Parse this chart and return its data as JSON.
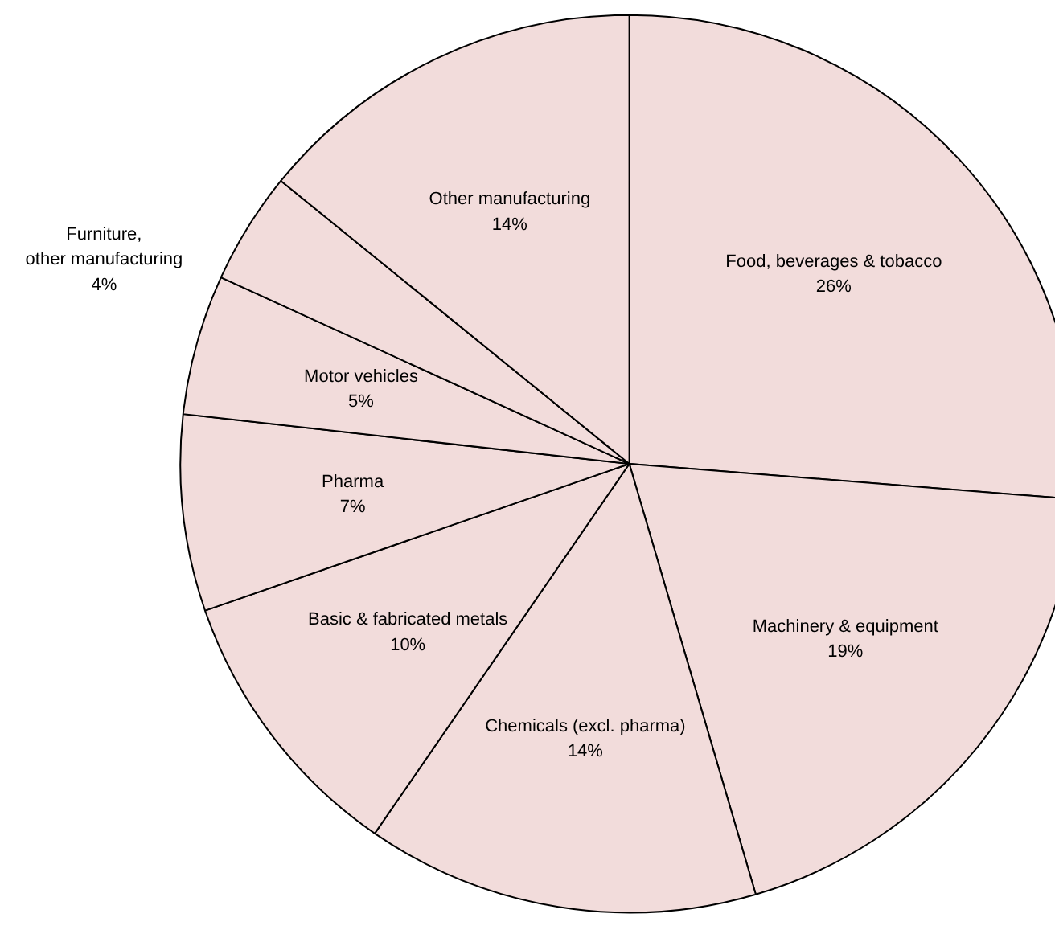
{
  "chart_data": {
    "type": "pie",
    "categories": [
      "Food, beverages & tobacco",
      "Machinery & equipment",
      "Chemicals (excl. pharma)",
      "Basic & fabricated metals",
      "Pharma",
      "Motor vehicles",
      "Furniture, other manufacturing",
      "Other manufacturing"
    ],
    "values": [
      26,
      19,
      14,
      10,
      7,
      5,
      4,
      14
    ],
    "colors": [
      "#f2dcdb",
      "#f2dcdb",
      "#f2dcdb",
      "#f2dcdb",
      "#f2dcdb",
      "#f2dcdb",
      "#f2dcdb",
      "#f2dcdb"
    ],
    "value_labels": [
      "26%",
      "19%",
      "14%",
      "10%",
      "7%",
      "5%",
      "4%",
      "14%"
    ]
  }
}
